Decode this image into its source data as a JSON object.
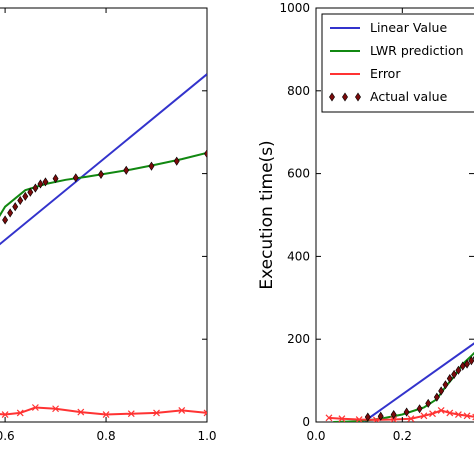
{
  "chart_data": [
    {
      "type": "line",
      "xlim": [
        0.58,
        1.0
      ],
      "ylim": [
        0,
        1000
      ],
      "x_ticks": [
        {
          "value": 0.6,
          "label": "0.6"
        },
        {
          "value": 0.8,
          "label": "0.8"
        },
        {
          "value": 1.0,
          "label": "1.0"
        }
      ],
      "series": [
        {
          "kind": "line",
          "color": "#3333cc",
          "x": [
            0.58,
            1.0
          ],
          "y": [
            420,
            840
          ]
        },
        {
          "kind": "line",
          "color": "#118811",
          "x": [
            0.58,
            0.6,
            0.64,
            0.68,
            0.72,
            0.76,
            0.8,
            0.85,
            0.9,
            0.95,
            1.0
          ],
          "y": [
            480,
            520,
            560,
            575,
            585,
            592,
            600,
            610,
            622,
            635,
            650
          ]
        },
        {
          "kind": "line",
          "color": "#ff3333",
          "marker": "x",
          "x": [
            0.58,
            0.6,
            0.63,
            0.66,
            0.7,
            0.75,
            0.8,
            0.85,
            0.9,
            0.95,
            1.0
          ],
          "y": [
            20,
            18,
            22,
            35,
            32,
            24,
            18,
            20,
            22,
            28,
            22
          ]
        },
        {
          "kind": "scatter",
          "color": "#7a0b0b",
          "x": [
            0.6,
            0.61,
            0.62,
            0.63,
            0.64,
            0.65,
            0.66,
            0.67,
            0.68,
            0.7,
            0.74,
            0.79,
            0.84,
            0.89,
            0.94,
            1.0
          ],
          "y": [
            488,
            505,
            520,
            535,
            545,
            555,
            565,
            575,
            580,
            588,
            590,
            598,
            608,
            618,
            630,
            648
          ]
        }
      ]
    },
    {
      "type": "line",
      "ylabel": "Execution time(s)",
      "xlim": [
        0.0,
        0.38
      ],
      "ylim": [
        0,
        1000
      ],
      "x_ticks": [
        {
          "value": 0.0,
          "label": "0.0"
        },
        {
          "value": 0.2,
          "label": "0.2"
        }
      ],
      "y_ticks": [
        {
          "value": 0,
          "label": "0"
        },
        {
          "value": 200,
          "label": "200"
        },
        {
          "value": 400,
          "label": "400"
        },
        {
          "value": 600,
          "label": "600"
        },
        {
          "value": 800,
          "label": "800"
        },
        {
          "value": 1000,
          "label": "1000"
        }
      ],
      "legend": {
        "placement": "top-right",
        "entries": [
          {
            "label": "Linear Value",
            "color": "#3333cc",
            "kind": "line"
          },
          {
            "label": "LWR prediction",
            "color": "#118811",
            "kind": "line"
          },
          {
            "label": "Error",
            "color": "#ff3333",
            "kind": "line"
          },
          {
            "label": "Actual value",
            "color": "#7a0b0b",
            "kind": "scatter"
          }
        ]
      },
      "series": [
        {
          "kind": "line",
          "color": "#3333cc",
          "x": [
            0.11,
            0.38
          ],
          "y": [
            0,
            200
          ]
        },
        {
          "kind": "line",
          "color": "#118811",
          "x": [
            0.04,
            0.1,
            0.15,
            0.2,
            0.25,
            0.28,
            0.3,
            0.32,
            0.34,
            0.36,
            0.38
          ],
          "y": [
            0,
            2,
            8,
            18,
            35,
            55,
            85,
            110,
            140,
            160,
            180
          ]
        },
        {
          "kind": "line",
          "color": "#ff3333",
          "marker": "x",
          "x": [
            0.03,
            0.06,
            0.1,
            0.14,
            0.18,
            0.22,
            0.25,
            0.27,
            0.29,
            0.31,
            0.33,
            0.35,
            0.37,
            0.38
          ],
          "y": [
            10,
            8,
            6,
            5,
            6,
            8,
            15,
            20,
            28,
            22,
            18,
            15,
            12,
            10
          ]
        },
        {
          "kind": "scatter",
          "color": "#7a0b0b",
          "x": [
            0.12,
            0.15,
            0.18,
            0.21,
            0.24,
            0.26,
            0.28,
            0.29,
            0.3,
            0.31,
            0.32,
            0.33,
            0.34,
            0.35,
            0.36,
            0.37,
            0.38
          ],
          "y": [
            12,
            14,
            18,
            24,
            32,
            45,
            60,
            75,
            90,
            105,
            115,
            125,
            135,
            140,
            148,
            155,
            165
          ]
        }
      ]
    }
  ]
}
